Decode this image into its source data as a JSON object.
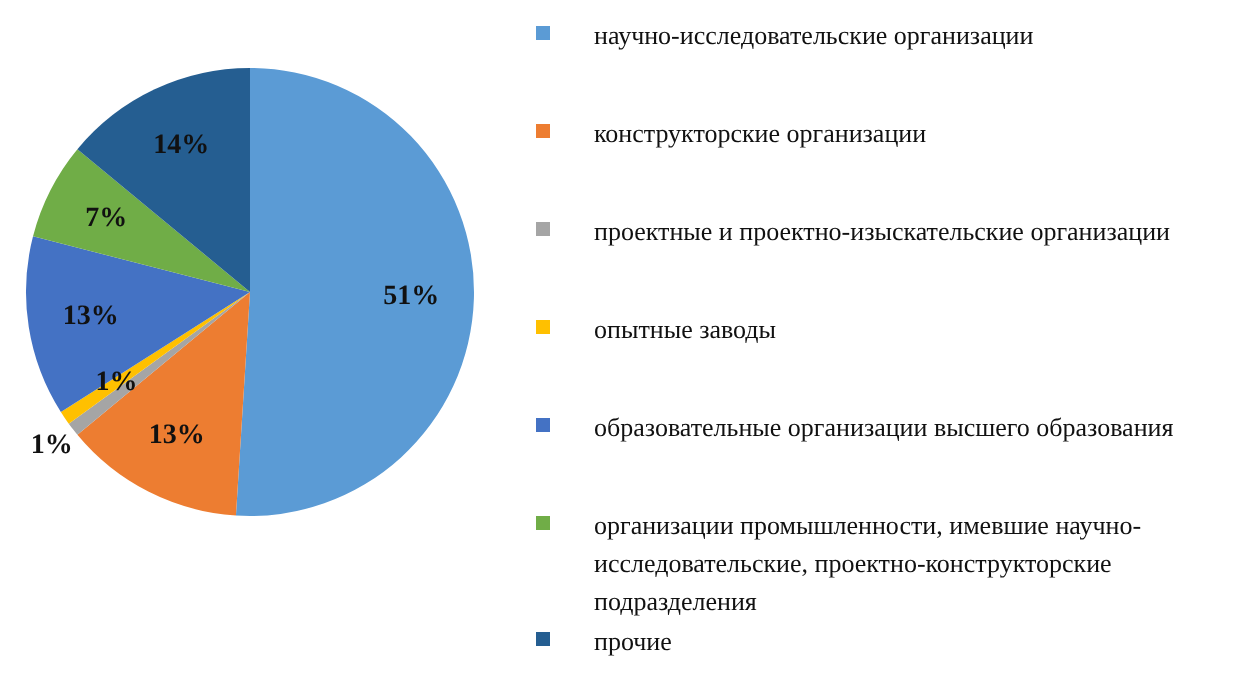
{
  "chart_data": {
    "type": "pie",
    "categories": [
      "научно-исследовательские организации",
      "конструкторские  организации",
      "проектные и проектно-изыскательские организации",
      "опытные заводы",
      "образовательные организации  высшего образования",
      "организации промышленности, имевшие научно-исследовательские, проектно-конструкторские  подразделения",
      "прочие"
    ],
    "values": [
      51,
      13,
      1,
      1,
      13,
      7,
      14
    ],
    "colors": [
      "#5b9bd5",
      "#ed7d31",
      "#a5a5a5",
      "#ffc000",
      "#4472c4",
      "#70ad47",
      "#255e91"
    ],
    "value_labels": [
      "51%",
      "13%",
      "1%",
      "1%",
      "13%",
      "7%",
      "14%"
    ],
    "legend": "right"
  }
}
